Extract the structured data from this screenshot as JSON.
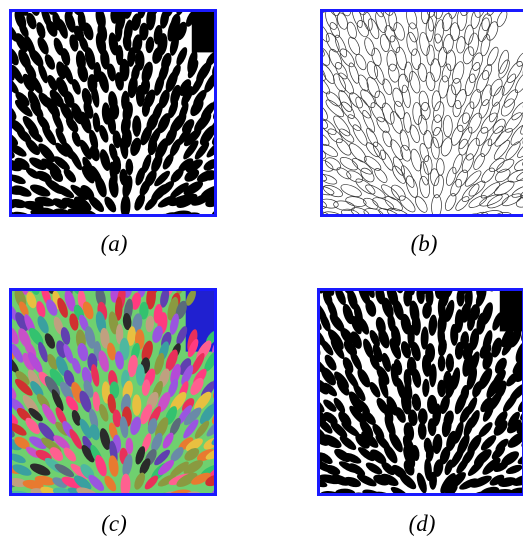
{
  "figure": {
    "panels": [
      {
        "id": "a",
        "caption": "(a)",
        "content": "binary-blob-pattern"
      },
      {
        "id": "b",
        "caption": "(b)",
        "content": "blob-contour-outlines"
      },
      {
        "id": "c",
        "caption": "(c)",
        "content": "colored-segment-labels"
      },
      {
        "id": "d",
        "caption": "(d)",
        "content": "reconstructed-binary-pattern"
      }
    ],
    "colors": {
      "border": "#1a1aff",
      "blob": "#000000",
      "background": "#ffffff",
      "outline": "#333333",
      "segment_background": "#6fd06f",
      "segment_corner": "#2020d0"
    }
  }
}
